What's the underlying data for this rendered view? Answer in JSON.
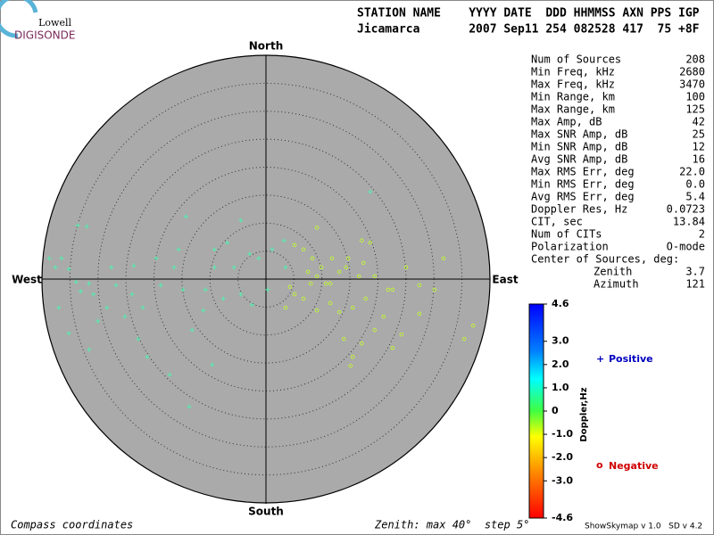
{
  "header": {
    "logo_top": "Lowell",
    "logo_bottom": "DIGISONDE",
    "columns": "STATION NAME    YYYY DATE  DDD HHMMSS AXN PPS IGP",
    "values": "Jicamarca       2007 Sep11 254 082528 417  75 +8F"
  },
  "chart_data": {
    "type": "scatter",
    "compass": {
      "north": "North",
      "south": "South",
      "east": "East",
      "west": "West"
    },
    "xlim": [
      -40,
      40
    ],
    "ylim": [
      -40,
      40
    ],
    "rings": [
      5,
      10,
      15,
      20,
      25,
      30,
      35,
      40
    ],
    "series": [
      {
        "name": "Positive",
        "symbol": "+",
        "color": "#50f0b0",
        "x": [
          -33.6,
          -32.0,
          -38.7,
          -36.5,
          -37.6,
          -35.2,
          -33.9,
          -31.6,
          -30.8,
          -33.1,
          -37.0,
          -35.2,
          -31.6,
          -30.0,
          -27.6,
          -23.6,
          -23.9,
          -22.0,
          -22.8,
          -21.2,
          -17.2,
          -13.7,
          -14.3,
          -16.4,
          -14.8,
          -13.2,
          -9.6,
          -11.2,
          -9.2,
          -6.9,
          -4.5,
          -2.9,
          -1.3,
          -5.7,
          -4.5,
          -2.5,
          1.1,
          3.2,
          3.5,
          0.3,
          18.6,
          -9.2,
          -18.8,
          -25.2,
          -28.4,
          -10.8,
          -7.6,
          -15.6,
          -19.6,
          -26.8
        ],
        "y": [
          9.6,
          9.4,
          3.7,
          3.7,
          2.1,
          1.8,
          -0.5,
          -0.8,
          -2.7,
          -2.2,
          -5.1,
          -9.7,
          -12.6,
          -7.5,
          2.1,
          2.4,
          -2.7,
          -5.1,
          -10.7,
          -13.9,
          -17.1,
          -22.8,
          11.2,
          2.1,
          -1.9,
          -9.1,
          -15.3,
          -5.6,
          5.3,
          6.5,
          10.5,
          4.5,
          3.7,
          2.1,
          -2.7,
          -4.6,
          5.3,
          6.9,
          2.1,
          -1.9,
          15.6,
          2.1,
          -1.1,
          -6.7,
          -5.1,
          -1.9,
          -3.5,
          5.3,
          3.7,
          -1.1
        ]
      },
      {
        "name": "Negative",
        "symbol": "o",
        "color": "#c0f040",
        "x": [
          5.1,
          6.7,
          8.3,
          9.9,
          7.5,
          9.1,
          11.5,
          13.1,
          14.7,
          17.1,
          18.6,
          17.4,
          19.4,
          21.8,
          22.6,
          25.0,
          27.4,
          30.1,
          31.7,
          37.0,
          35.4,
          27.4,
          24.2,
          22.6,
          19.4,
          17.1,
          15.5,
          15.1,
          13.9,
          15.5,
          13.1,
          11.5,
          9.1,
          6.7,
          5.1,
          3.5,
          4.3,
          10.7,
          17.8,
          21.0,
          9.1,
          11.8,
          14.3,
          16.6,
          8.0
        ],
        "y": [
          6.1,
          5.3,
          3.7,
          2.1,
          1.3,
          0.5,
          -0.8,
          1.3,
          3.7,
          6.9,
          6.5,
          2.9,
          0.5,
          -1.9,
          -1.9,
          2.1,
          -1.1,
          -1.9,
          3.7,
          -8.3,
          -10.7,
          -6.2,
          -9.9,
          -12.3,
          -9.1,
          -11.5,
          -13.9,
          -15.5,
          -10.7,
          -5.1,
          -5.9,
          -4.3,
          -5.6,
          -3.5,
          -2.7,
          -5.1,
          -1.4,
          -0.8,
          -3.5,
          -6.7,
          9.2,
          3.7,
          2.1,
          0.5,
          -0.8
        ]
      }
    ]
  },
  "stats": [
    {
      "label": "Num of Sources",
      "value": "208"
    },
    {
      "label": "Min Freq, kHz",
      "value": "2680"
    },
    {
      "label": "Max Freq, kHz",
      "value": "3470"
    },
    {
      "label": "Min Range, km",
      "value": "100"
    },
    {
      "label": "Max Range, km",
      "value": "125"
    },
    {
      "label": "Max Amp, dB",
      "value": "42"
    },
    {
      "label": "Max SNR Amp, dB",
      "value": "25"
    },
    {
      "label": "Min SNR Amp, dB",
      "value": "12"
    },
    {
      "label": "Avg SNR Amp, dB",
      "value": "16"
    },
    {
      "label": "Max RMS Err, deg",
      "value": "22.0"
    },
    {
      "label": "Min RMS Err, deg",
      "value": "0.0"
    },
    {
      "label": "Avg RMS Err, deg",
      "value": "5.4"
    },
    {
      "label": "Doppler Res, Hz",
      "value": "0.0723"
    },
    {
      "label": "CIT, sec",
      "value": "13.84"
    },
    {
      "label": "Num of CITs",
      "value": "2"
    },
    {
      "label": "Polarization",
      "value": "O-mode"
    }
  ],
  "center": {
    "title": "Center of Sources, deg:",
    "rows": [
      {
        "label": "Zenith",
        "value": "3.7"
      },
      {
        "label": "Azimuth",
        "value": "121"
      }
    ]
  },
  "colorbar": {
    "label": "Doppler,Hz",
    "lim": [
      -4.6,
      4.6
    ],
    "ticks": [
      4.6,
      {
        "value": 3,
        "label": "3.0"
      },
      {
        "value": 2,
        "label": "2.0"
      },
      {
        "value": 1,
        "label": "1.0"
      },
      0,
      {
        "value": -1,
        "label": "-1.0"
      },
      {
        "value": -2,
        "label": "-2.0"
      },
      {
        "value": -3,
        "label": "-3.0"
      },
      -4.6
    ]
  },
  "footer": {
    "left": "Compass coordinates",
    "middle": "Zenith: max 40°  step 5°",
    "right": "ShowSkymap v 1.0   SD v 4.2"
  }
}
